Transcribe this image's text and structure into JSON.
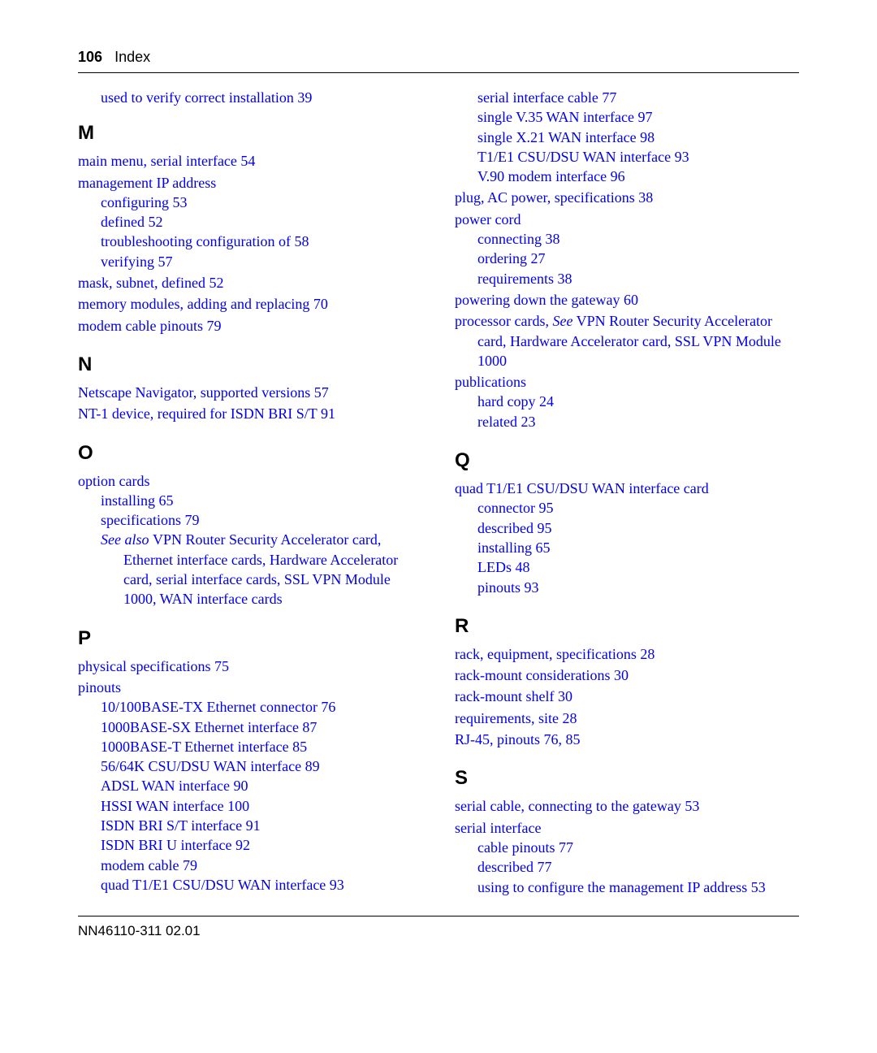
{
  "header": {
    "page_number": "106",
    "section": "Index"
  },
  "footer": {
    "doc_id": "NN46110-311 02.01"
  },
  "colors": {
    "link": "#0000ee",
    "text": "#000000",
    "rule": "#000000",
    "background": "#ffffff"
  },
  "left": {
    "pre": [
      {
        "text": "used to verify correct installation 39"
      }
    ],
    "letters": [
      {
        "letter": "M",
        "items": [
          {
            "type": "entry",
            "text": "main menu, serial interface 54"
          },
          {
            "type": "group",
            "head": "management IP address",
            "subs": [
              "configuring 53",
              "defined 52",
              "troubleshooting configuration of 58",
              "verifying 57"
            ]
          },
          {
            "type": "entry",
            "text": "mask, subnet, defined 52"
          },
          {
            "type": "entry",
            "text": "memory modules, adding and replacing 70"
          },
          {
            "type": "entry",
            "text": "modem cable pinouts 79"
          }
        ]
      },
      {
        "letter": "N",
        "items": [
          {
            "type": "entry",
            "text": "Netscape Navigator, supported versions 57"
          },
          {
            "type": "entry",
            "text": "NT-1 device, required for ISDN BRI S/T 91"
          }
        ]
      },
      {
        "letter": "O",
        "items": [
          {
            "type": "group",
            "head": "option cards",
            "subs": [
              "installing 65",
              "specifications 79"
            ],
            "see_also": {
              "prefix": "See also ",
              "rest": "VPN Router Security Accelerator card, Ethernet interface cards, Hardware Accelerator card, serial interface cards, SSL VPN Module 1000, WAN interface cards"
            }
          }
        ]
      },
      {
        "letter": "P",
        "items": [
          {
            "type": "entry",
            "text": "physical specifications 75"
          },
          {
            "type": "group",
            "head": "pinouts",
            "subs": [
              "10/100BASE-TX Ethernet connector 76",
              "1000BASE-SX Ethernet interface 87",
              "1000BASE-T Ethernet interface 85",
              "56/64K CSU/DSU WAN interface 89",
              "ADSL WAN interface 90",
              "HSSI WAN interface 100",
              "ISDN BRI S/T interface 91",
              "ISDN BRI U interface 92",
              "modem cable 79",
              "quad T1/E1 CSU/DSU WAN interface 93"
            ]
          }
        ]
      }
    ]
  },
  "right": {
    "pre_subs": [
      "serial interface cable 77",
      "single V.35 WAN interface 97",
      "single X.21 WAN interface 98",
      "T1/E1 CSU/DSU WAN interface 93",
      "V.90 modem interface 96"
    ],
    "pre_entries": [
      {
        "type": "entry",
        "text": "plug, AC power, specifications 38"
      },
      {
        "type": "group",
        "head": "power cord",
        "subs": [
          "connecting 38",
          "ordering 27",
          "requirements 38"
        ]
      },
      {
        "type": "entry",
        "text": "powering down the gateway 60"
      },
      {
        "type": "group",
        "head_html": true,
        "head_prefix": "processor cards, ",
        "head_italic": "See",
        "head_rest": " VPN Router Security Accelerator card, Hardware Accelerator card, SSL VPN Module 1000",
        "subs": []
      },
      {
        "type": "group",
        "head": "publications",
        "subs": [
          "hard copy 24",
          "related 23"
        ]
      }
    ],
    "letters": [
      {
        "letter": "Q",
        "items": [
          {
            "type": "group",
            "head": "quad T1/E1 CSU/DSU WAN interface card",
            "subs": [
              "connector 95",
              "described 95",
              "installing 65",
              "LEDs 48",
              "pinouts 93"
            ]
          }
        ]
      },
      {
        "letter": "R",
        "items": [
          {
            "type": "entry",
            "text": "rack, equipment, specifications 28"
          },
          {
            "type": "entry",
            "text": "rack-mount considerations 30"
          },
          {
            "type": "entry",
            "text": "rack-mount shelf 30"
          },
          {
            "type": "entry",
            "text": "requirements, site 28"
          },
          {
            "type": "entry",
            "text": "RJ-45, pinouts 76, 85"
          }
        ]
      },
      {
        "letter": "S",
        "items": [
          {
            "type": "entry",
            "text": "serial cable, connecting to the gateway 53"
          },
          {
            "type": "group",
            "head": "serial interface",
            "subs": [
              "cable pinouts 77",
              "described 77",
              "using to configure the management IP address 53"
            ]
          }
        ]
      }
    ]
  }
}
